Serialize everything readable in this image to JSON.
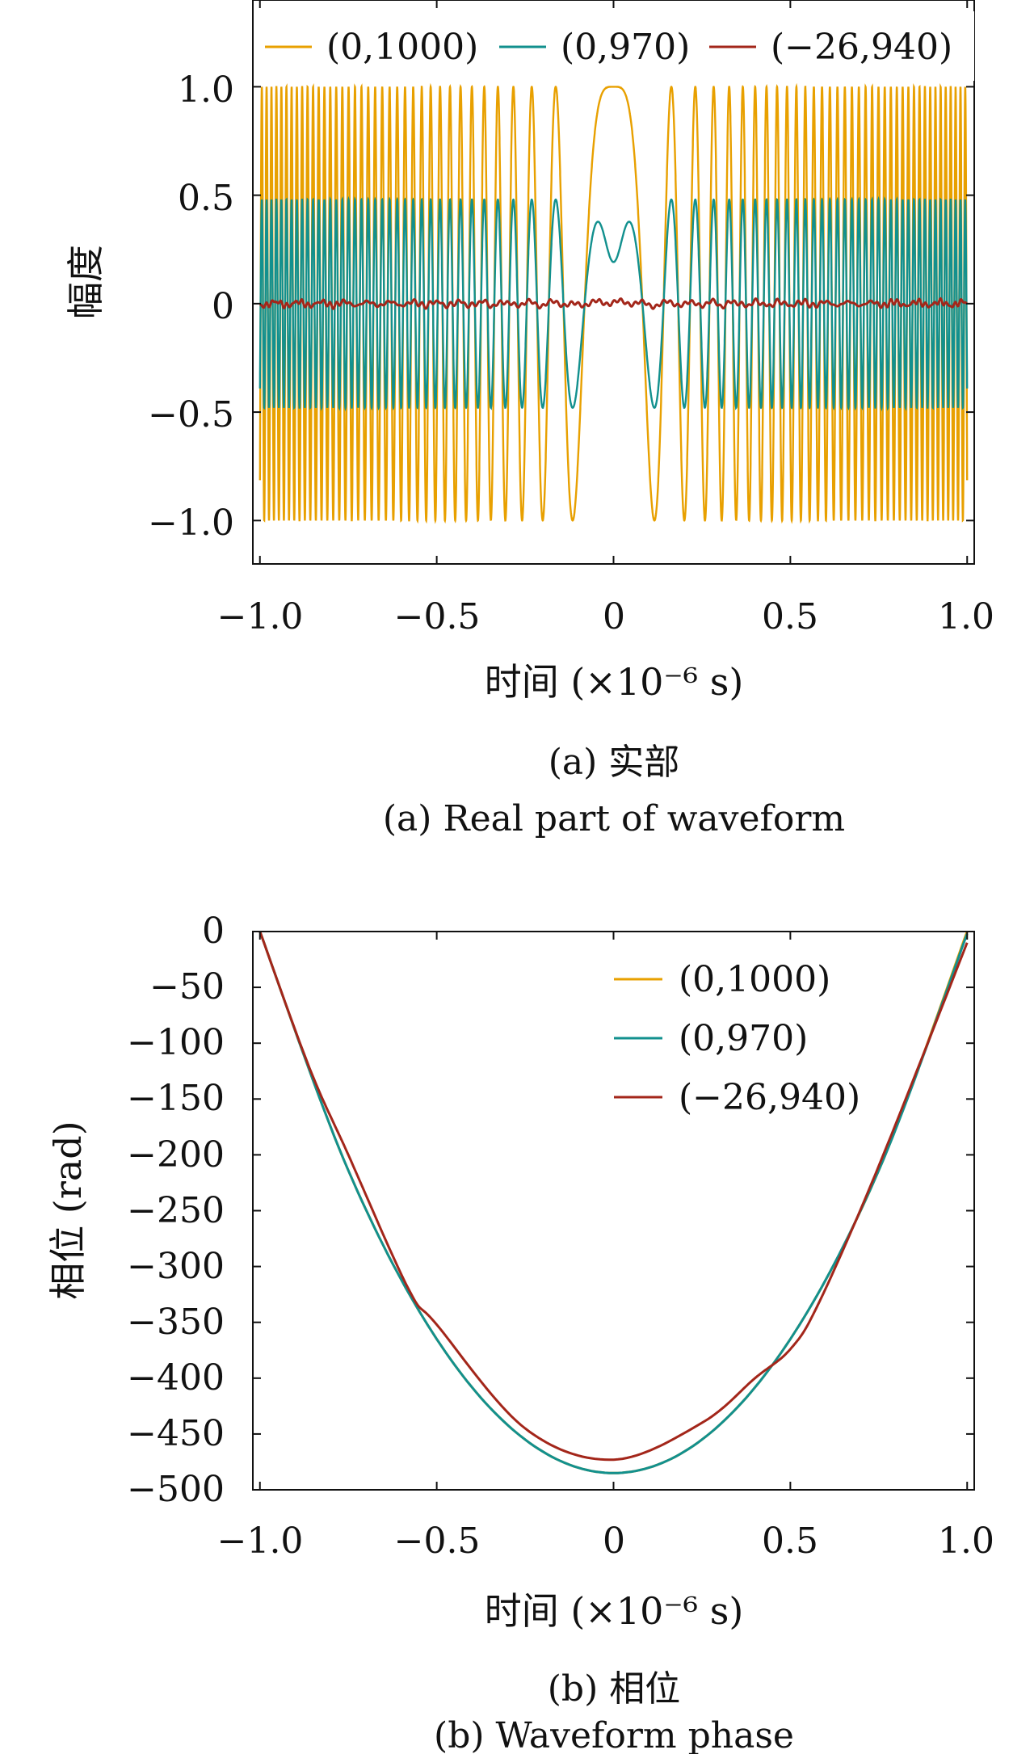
{
  "colors": {
    "c1000": "#E8A000",
    "c970": "#12908E",
    "c26": "#A3261A"
  },
  "chart_data": [
    {
      "id": "real",
      "type": "line",
      "ylabel": "幅度",
      "xlabel": "时间 (×10⁻⁶ s)",
      "xlim": [
        -1.02,
        1.02
      ],
      "ylim": [
        -1.2,
        1.4
      ],
      "x_ticks": [
        -1.0,
        -0.5,
        0,
        0.5,
        1.0
      ],
      "x_tick_labels": [
        "−1.0",
        "−0.5",
        "0",
        "0.5",
        "1.0"
      ],
      "y_ticks": [
        1.0,
        0.5,
        0,
        -0.5,
        -1.0
      ],
      "y_tick_labels": [
        "1.0",
        "0.5",
        "0",
        "−0.5",
        "−1.0"
      ],
      "legend_position": "top",
      "series": [
        {
          "name": "(0,1000)",
          "color": "#E8A000",
          "model": "chirp",
          "amplitude": 1.0,
          "center_value": 1.0
        },
        {
          "name": "(0,970)",
          "color": "#12908E",
          "model": "chirp",
          "amplitude": 0.48,
          "center_value": 0.2
        },
        {
          "name": "(−26,940)",
          "color": "#A3261A",
          "model": "near-zero",
          "amplitude": 0.02
        }
      ],
      "caption_cn": "(a) 实部",
      "caption_en": "(a) Real part of waveform"
    },
    {
      "id": "phase",
      "type": "line",
      "ylabel": "相位 (rad)",
      "xlabel": "时间 (×10⁻⁶ s)",
      "xlim": [
        -1.02,
        1.02
      ],
      "ylim": [
        -500,
        0
      ],
      "x_ticks": [
        -1.0,
        -0.5,
        0,
        0.5,
        1.0
      ],
      "x_tick_labels": [
        "−1.0",
        "−0.5",
        "0",
        "0.5",
        "1.0"
      ],
      "y_ticks": [
        0,
        -50,
        -100,
        -150,
        -200,
        -250,
        -300,
        -350,
        -400,
        -450,
        -500
      ],
      "y_tick_labels": [
        "0",
        "−50",
        "−100",
        "−150",
        "−200",
        "−250",
        "−300",
        "−350",
        "−400",
        "−450",
        "−500"
      ],
      "legend_position": "top-right",
      "series": [
        {
          "name": "(0,1000)",
          "color": "#E8A000",
          "x": [
            -1.0,
            -0.75,
            -0.5,
            -0.25,
            0,
            0.25,
            0.5,
            0.75,
            1.0
          ],
          "y": [
            0,
            -214,
            -365,
            -455,
            -485,
            -455,
            -365,
            -214,
            0
          ]
        },
        {
          "name": "(0,970)",
          "color": "#12908E",
          "x": [
            -1.0,
            -0.75,
            -0.5,
            -0.25,
            0,
            0.25,
            0.5,
            0.75,
            1.0
          ],
          "y": [
            0,
            -214,
            -365,
            -455,
            -485,
            -455,
            -365,
            -214,
            -2
          ]
        },
        {
          "name": "(−26,940)",
          "color": "#A3261A",
          "x": [
            -1.0,
            -0.86,
            -0.75,
            -0.58,
            -0.5,
            -0.25,
            0,
            0.25,
            0.4,
            0.5,
            0.58,
            0.75,
            1.0
          ],
          "y": [
            0,
            -122,
            -200,
            -320,
            -352,
            -445,
            -473,
            -440,
            -400,
            -374,
            -333,
            -210,
            -10
          ]
        }
      ],
      "caption_cn": "(b) 相位",
      "caption_en": "(b) Waveform phase"
    }
  ]
}
